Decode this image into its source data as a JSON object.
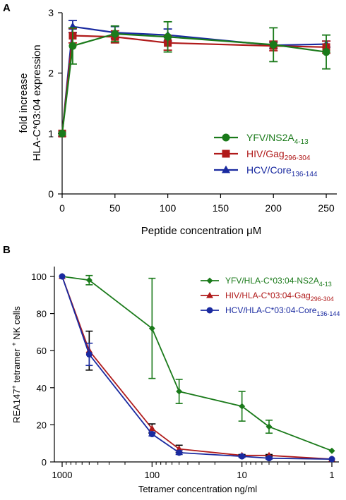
{
  "chart_data": [
    {
      "panel": "A",
      "type": "line",
      "xlabel": "Peptide concentration μM",
      "ylabel": [
        "fold increase",
        "HLA-C*03:04 expression"
      ],
      "xlim": [
        0,
        260
      ],
      "ylim": [
        0,
        3
      ],
      "xticks": [
        0,
        50,
        100,
        150,
        200,
        250
      ],
      "yticks": [
        0,
        1,
        2,
        3
      ],
      "x": [
        0,
        10,
        50,
        100,
        200,
        250
      ],
      "legend_position": "bottom-right",
      "series": [
        {
          "name": "YFV/NS2A",
          "name_sub": "4-13",
          "color": "#1a7a1a",
          "marker": "circle",
          "values": [
            1.0,
            2.45,
            2.65,
            2.6,
            2.47,
            2.35
          ],
          "errors": [
            0,
            0.3,
            0.13,
            0.25,
            0.28,
            0.28
          ]
        },
        {
          "name": "HIV/Gag",
          "name_sub": "296-304",
          "color": "#b01a1a",
          "marker": "square",
          "values": [
            1.0,
            2.62,
            2.6,
            2.5,
            2.45,
            2.43
          ],
          "errors": [
            0,
            0.12,
            0.1,
            0.12,
            0.08,
            0.1
          ]
        },
        {
          "name": "HCV/Core",
          "name_sub": "136-144",
          "color": "#1a2aa0",
          "marker": "triangle",
          "values": [
            1.0,
            2.77,
            2.67,
            2.63,
            2.46,
            2.48
          ],
          "errors": [
            0,
            0.1,
            0.1,
            0.1,
            0.05,
            0.05
          ]
        }
      ]
    },
    {
      "panel": "B",
      "type": "line",
      "xlabel": "Tetramer concentration ng/ml",
      "ylabel": [
        "REA147",
        "+",
        " tetramer ",
        "+",
        " NK cells"
      ],
      "x_scale": "log",
      "x_reversed": true,
      "xlim": [
        1000,
        1
      ],
      "ylim": [
        0,
        105
      ],
      "xticks": [
        1000,
        100,
        10,
        1
      ],
      "yticks": [
        0,
        20,
        40,
        60,
        80,
        100
      ],
      "x": [
        1000,
        500,
        100,
        50,
        10,
        5,
        1
      ],
      "legend_position": "top-right",
      "series": [
        {
          "name": "YFV/HLA-C*03:04-NS2A",
          "name_sub": "4-13",
          "color": "#1a7a1a",
          "marker": "diamond",
          "values": [
            100,
            98,
            72,
            38,
            30,
            19,
            6
          ],
          "errors": [
            0,
            2.5,
            27,
            6.5,
            8,
            3.5,
            0
          ]
        },
        {
          "name": "HIV/HLA-C*03:04-Gag",
          "name_sub": "296-304",
          "color": "#b01a1a",
          "marker": "triangle",
          "values": [
            100,
            60,
            18,
            7,
            3.5,
            3.5,
            1.5
          ],
          "errors": [
            0,
            10.5,
            2.5,
            2,
            0.5,
            0.5,
            0
          ]
        },
        {
          "name": "HCV/HLA-C*03:04-Core",
          "name_sub": "136-144",
          "color": "#1a2aa0",
          "marker": "circle",
          "values": [
            100,
            58,
            15,
            5,
            3,
            2,
            1.5
          ],
          "errors": [
            0,
            6,
            1,
            1,
            0.5,
            0.5,
            0
          ]
        }
      ]
    }
  ]
}
